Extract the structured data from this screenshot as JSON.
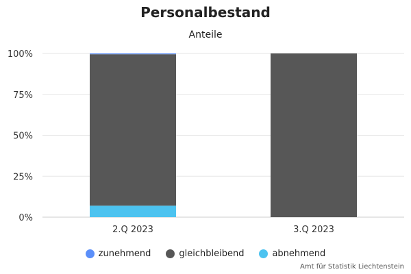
{
  "chart_data": {
    "type": "bar",
    "stacked": true,
    "title": "Personalbestand",
    "subtitle": "Anteile",
    "categories": [
      "2.Q 2023",
      "3.Q 2023"
    ],
    "series": [
      {
        "name": "abnehmend",
        "color": "#4cc3f0",
        "values": [
          7,
          0
        ]
      },
      {
        "name": "gleichbleibend",
        "color": "#575757",
        "values": [
          92.5,
          100
        ]
      },
      {
        "name": "zunehmend",
        "color": "#5b8ff9",
        "values": [
          0.5,
          0
        ]
      }
    ],
    "legend_order": [
      "zunehmend",
      "gleichbleibend",
      "abnehmend"
    ],
    "ylim": [
      0,
      100
    ],
    "yticks": [
      "0%",
      "25%",
      "50%",
      "75%",
      "100%"
    ],
    "grid": true,
    "legend_position": "bottom",
    "credit": "Amt für Statistik Liechtenstein"
  }
}
